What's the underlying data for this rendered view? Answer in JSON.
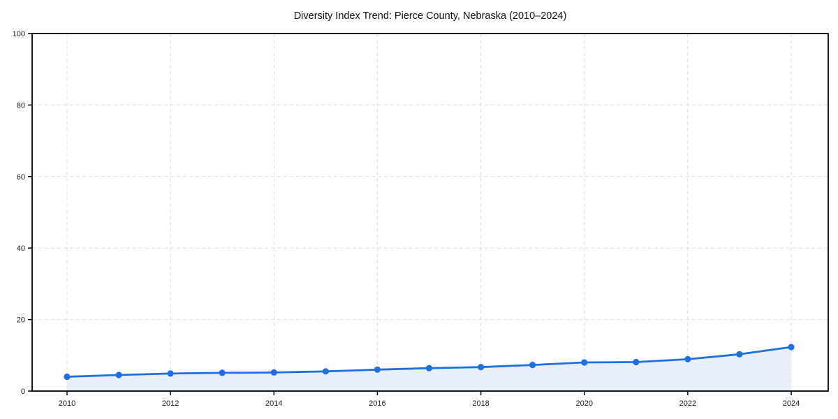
{
  "chart_data": {
    "type": "line",
    "title": "Diversity Index Trend: Pierce County, Nebraska (2010–2024)",
    "xlabel": "",
    "ylabel": "",
    "x": [
      2010,
      2011,
      2012,
      2013,
      2014,
      2015,
      2016,
      2017,
      2018,
      2019,
      2020,
      2021,
      2022,
      2023,
      2024
    ],
    "series": [
      {
        "name": "Diversity Index",
        "values": [
          4.0,
          4.5,
          4.9,
          5.1,
          5.2,
          5.5,
          6.0,
          6.4,
          6.7,
          7.3,
          8.0,
          8.1,
          8.9,
          10.3,
          12.3
        ]
      }
    ],
    "xticks": [
      2010,
      2012,
      2014,
      2016,
      2018,
      2020,
      2022,
      2024
    ],
    "yticks": [
      0,
      20,
      40,
      60,
      80,
      100
    ],
    "ylim": [
      0,
      100
    ],
    "grid": "dashed, horizontal and vertical at ticks",
    "legend": "none",
    "marker": "circle",
    "area_fill": true,
    "colors": {
      "line": "#1f6fe0",
      "marker": "#1f6fe0",
      "fill": "#e8effb",
      "grid": "#dcdcdc",
      "spine": "#000000",
      "text": "#1a1a1a",
      "background": "#ffffff"
    }
  }
}
